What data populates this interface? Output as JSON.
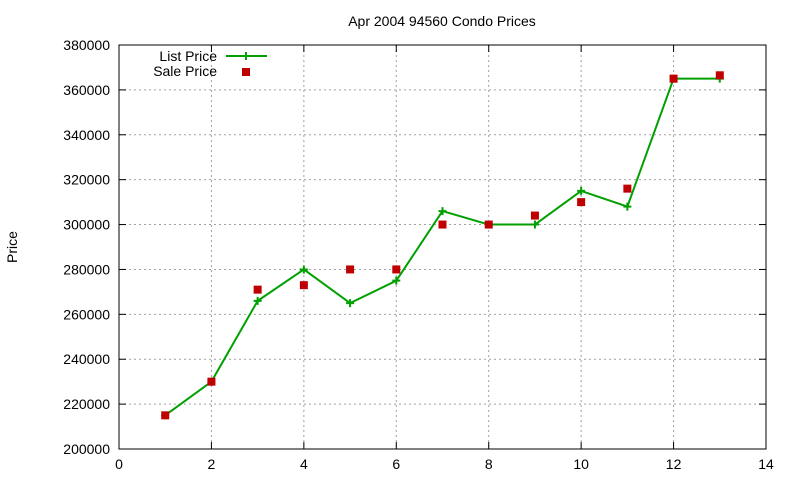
{
  "chart_data": {
    "type": "line",
    "title": "Apr 2004 94560 Condo Prices",
    "xlabel": "",
    "ylabel": "Price",
    "xlim": [
      0,
      14
    ],
    "ylim": [
      200000,
      380000
    ],
    "xticks": [
      0,
      2,
      4,
      6,
      8,
      10,
      12,
      14
    ],
    "yticks": [
      200000,
      220000,
      240000,
      260000,
      280000,
      300000,
      320000,
      340000,
      360000,
      380000
    ],
    "grid": true,
    "legend_position": "top-left",
    "series": [
      {
        "name": "List Price",
        "style": "line+cross",
        "color": "#00a000",
        "x": [
          1,
          2,
          3,
          4,
          5,
          6,
          7,
          8,
          9,
          10,
          11,
          12,
          13
        ],
        "y": [
          215000,
          230000,
          266000,
          280000,
          265000,
          275000,
          306000,
          300000,
          300000,
          315000,
          308000,
          365000,
          365000
        ]
      },
      {
        "name": "Sale Price",
        "style": "square-points",
        "color": "#c00000",
        "x": [
          1,
          2,
          3,
          4,
          5,
          6,
          7,
          8,
          9,
          10,
          11,
          12,
          13
        ],
        "y": [
          215000,
          230000,
          271000,
          273000,
          280000,
          280000,
          300000,
          300000,
          304000,
          310000,
          316000,
          365000,
          366500
        ]
      }
    ]
  }
}
